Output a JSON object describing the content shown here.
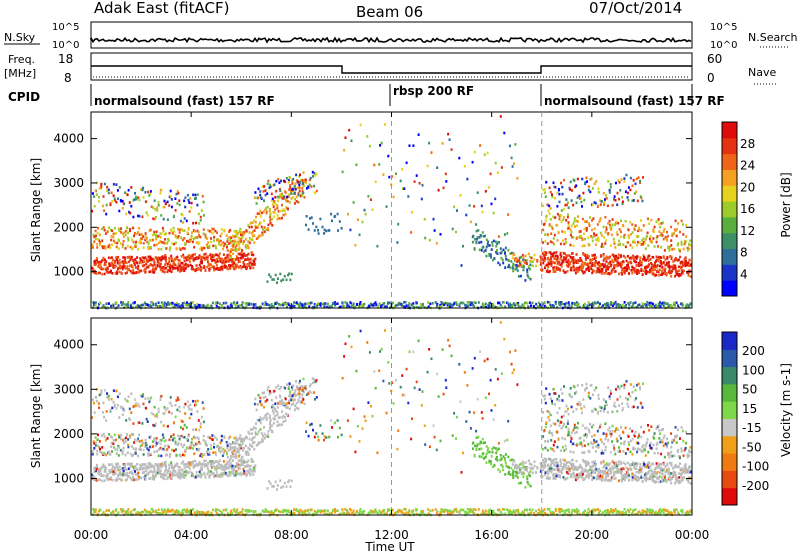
{
  "header": {
    "title": "Adak East (fitACF)",
    "beam": "Beam 06",
    "date": "07/Oct/2014"
  },
  "top_panels": {
    "nsky_label": "N.Sky",
    "nsearch_label": "N.Search",
    "noise_ticks": [
      "10^5",
      "10^0"
    ],
    "freq_label": "Freq.",
    "freq_unit": "[MHz]",
    "freq_ticks": [
      "18",
      "8"
    ],
    "nave_label": "Nave",
    "nave_ticks": [
      "60",
      "0"
    ],
    "cpid_label": "CPID",
    "cpid_segments": [
      {
        "label": "normalsound (fast) 157 RF",
        "start_h": 0,
        "end_h": 12
      },
      {
        "label": "rbsp 200 RF",
        "start_h": 12,
        "end_h": 18
      },
      {
        "label": "normalsound (fast) 157 RF",
        "start_h": 18,
        "end_h": 24
      }
    ]
  },
  "chart_data": [
    {
      "type": "heatmap",
      "parameter": "Power",
      "ylabel": "Slant Range [km]",
      "yticks": [
        1000,
        2000,
        3000,
        4000
      ],
      "ylim": [
        180,
        4600
      ],
      "colorbar_label": "Power [dB]",
      "colorbar_ticks": [
        4,
        8,
        12,
        16,
        20,
        24,
        28
      ],
      "colorbar_range": [
        0,
        32
      ],
      "colors": [
        "#0000ff",
        "#1a33c8",
        "#2e6e9a",
        "#3d8f66",
        "#5aae3c",
        "#9ccc2a",
        "#e6d21e",
        "#f5a020",
        "#f06418",
        "#e43212",
        "#e00a0a"
      ]
    },
    {
      "type": "heatmap",
      "parameter": "Velocity",
      "ylabel": "Slant Range [km]",
      "yticks": [
        1000,
        2000,
        3000,
        4000
      ],
      "ylim": [
        180,
        4600
      ],
      "colorbar_label": "Velocity [m s-1]",
      "colorbar_ticks": [
        200,
        100,
        50,
        15,
        -15,
        -50,
        -100,
        -200
      ],
      "colors": [
        "#1a28c8",
        "#2a5aa8",
        "#3a8a6a",
        "#58b83a",
        "#7ed84a",
        "#c8c8c8",
        "#f0a018",
        "#ee7a10",
        "#e84a10",
        "#e00a0a"
      ],
      "ground_scatter_color": "#bcbcbc"
    }
  ],
  "xaxis": {
    "label": "Time UT",
    "ticks": [
      "00:00",
      "04:00",
      "08:00",
      "12:00",
      "16:00",
      "20:00",
      "00:00"
    ],
    "range_h": [
      0,
      24
    ]
  }
}
